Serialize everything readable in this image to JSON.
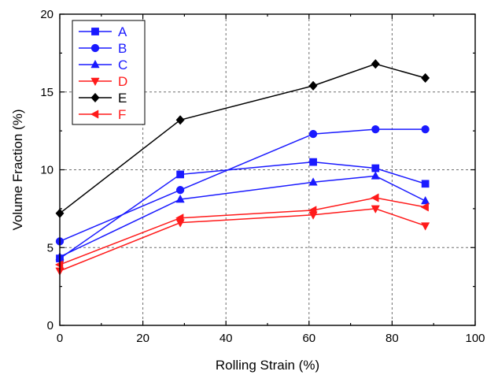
{
  "chart_data": {
    "type": "line",
    "xlabel": "Rolling Strain (%)",
    "ylabel": "Volume Fraction (%)",
    "xlim": [
      0,
      100
    ],
    "ylim": [
      0,
      20
    ],
    "xticks": [
      "0",
      "20",
      "40",
      "60",
      "80",
      "100"
    ],
    "yticks": [
      "0",
      "5",
      "10",
      "15",
      "20"
    ],
    "x_tick_values": [
      0,
      20,
      40,
      60,
      80,
      100
    ],
    "y_tick_values": [
      0,
      5,
      10,
      15,
      20
    ],
    "grid": true,
    "legend_position": "top-left",
    "x": [
      0,
      29,
      61,
      76,
      88
    ],
    "series": [
      {
        "name": "A",
        "color": "#1a1aff",
        "marker": "square",
        "values": [
          4.3,
          9.7,
          10.5,
          10.1,
          9.1
        ]
      },
      {
        "name": "B",
        "color": "#1a1aff",
        "marker": "circle",
        "values": [
          5.4,
          8.7,
          12.3,
          12.6,
          12.6
        ]
      },
      {
        "name": "C",
        "color": "#1a1aff",
        "marker": "triangle-up",
        "values": [
          4.4,
          8.1,
          9.2,
          9.6,
          8.0
        ]
      },
      {
        "name": "D",
        "color": "#ff1a1a",
        "marker": "triangle-down",
        "values": [
          3.5,
          6.6,
          7.1,
          7.5,
          6.4
        ]
      },
      {
        "name": "E",
        "color": "#000000",
        "marker": "diamond",
        "values": [
          7.2,
          13.2,
          15.4,
          16.8,
          15.9
        ]
      },
      {
        "name": "F",
        "color": "#ff1a1a",
        "marker": "triangle-left",
        "values": [
          3.9,
          6.9,
          7.4,
          8.2,
          7.6
        ]
      }
    ]
  }
}
